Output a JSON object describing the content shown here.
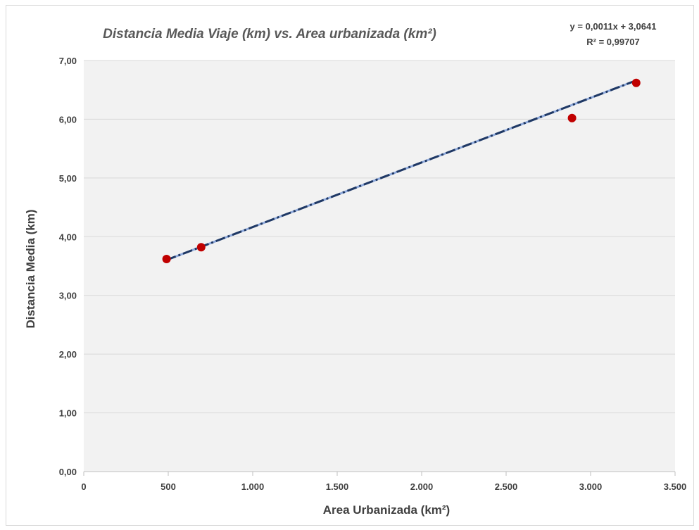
{
  "chart_data": {
    "type": "scatter",
    "title": "Distancia Media Viaje (km)  vs. Area urbanizada (km²)",
    "xlabel": "Area Urbanizada (km²)",
    "ylabel": "Distancia Media (km)",
    "xlim": [
      0,
      3500
    ],
    "ylim": [
      0,
      7
    ],
    "x_ticks": [
      0,
      500,
      1000,
      1500,
      2000,
      2500,
      3000,
      3500
    ],
    "x_tick_labels": [
      "0",
      "500",
      "1.000",
      "1.500",
      "2.000",
      "2.500",
      "3.000",
      "3.500"
    ],
    "y_ticks": [
      0,
      1,
      2,
      3,
      4,
      5,
      6,
      7
    ],
    "y_tick_labels": [
      "0,00",
      "1,00",
      "2,00",
      "3,00",
      "4,00",
      "5,00",
      "6,00",
      "7,00"
    ],
    "grid": "horizontal",
    "series": [
      {
        "x": [
          490,
          695,
          2890,
          3270
        ],
        "y": [
          3.62,
          3.82,
          6.02,
          6.62
        ],
        "color": "#c00000"
      }
    ],
    "trendline": {
      "slope": 0.0011,
      "intercept": 3.0641,
      "x_range": [
        490,
        3270
      ],
      "style": "dash-dot",
      "color_dark": "#1f3864",
      "color_light": "#8faadc"
    },
    "equation_label": "y = 0,0011x + 3,0641",
    "r2_label": "R² = 0,99707",
    "colors": {
      "plot_background": "#f2f2f2",
      "gridline": "#d9d9d9",
      "marker": "#c00000"
    }
  }
}
